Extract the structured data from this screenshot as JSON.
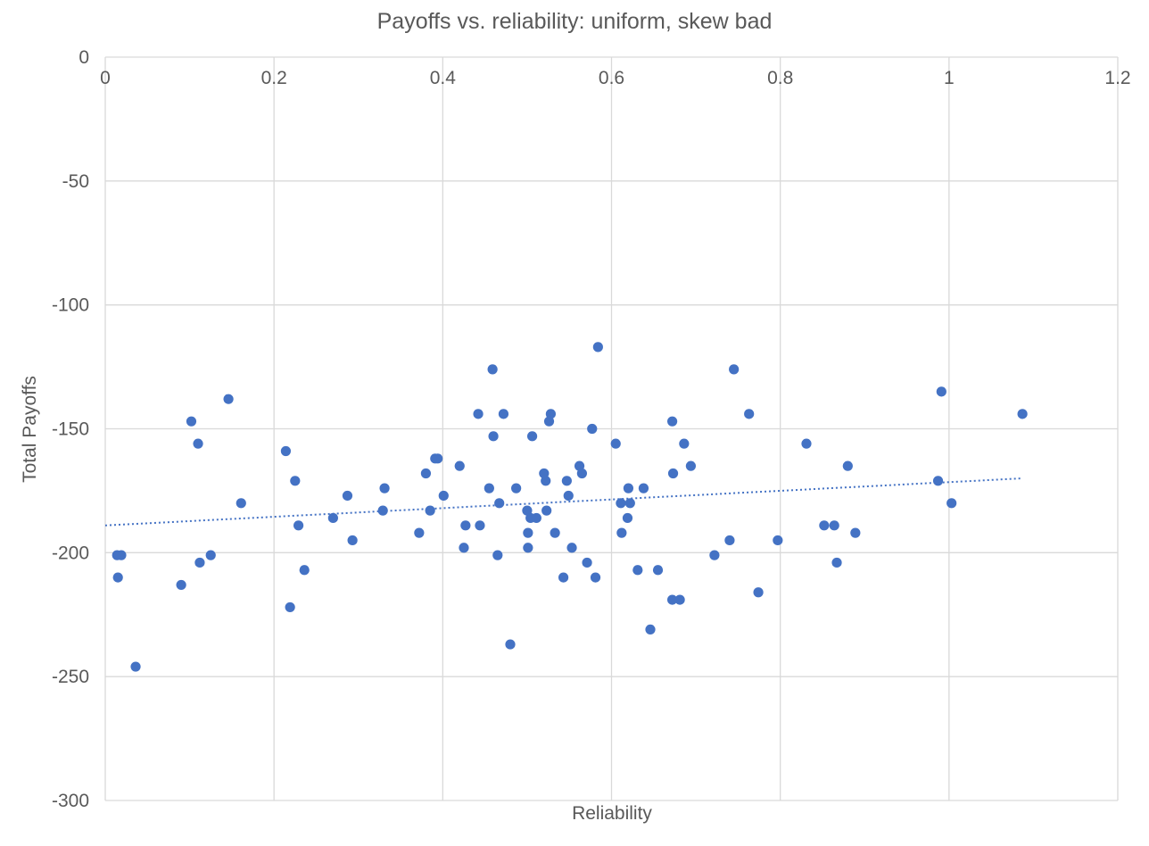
{
  "chart_data": {
    "type": "scatter",
    "title": "Payoffs vs. reliability: uniform, skew bad",
    "xlabel": "Reliability",
    "ylabel": "Total Payoffs",
    "xlim": [
      0,
      1.2
    ],
    "ylim": [
      -300,
      0
    ],
    "x_ticks": [
      0,
      0.2,
      0.4,
      0.6,
      0.8,
      1,
      1.2
    ],
    "x_tick_labels": [
      "0",
      "0.2",
      "0.4",
      "0.6",
      "0.8",
      "1",
      "1.2"
    ],
    "y_ticks": [
      0,
      -50,
      -100,
      -150,
      -200,
      -250,
      -300
    ],
    "y_tick_labels": [
      "0",
      "-50",
      "-100",
      "-150",
      "-200",
      "-250",
      "-300"
    ],
    "x_axis_position": "top",
    "grid": true,
    "legend": "none",
    "marker_color": "#4472c4",
    "trendline": {
      "type": "linear",
      "style": "dotted",
      "color": "#4472c4",
      "x_start": 0.0,
      "y_start": -189,
      "x_end": 1.087,
      "y_end": -170
    },
    "points": [
      [
        0.014,
        -201
      ],
      [
        0.019,
        -201
      ],
      [
        0.015,
        -210
      ],
      [
        0.036,
        -246
      ],
      [
        0.09,
        -213
      ],
      [
        0.102,
        -147
      ],
      [
        0.11,
        -156
      ],
      [
        0.112,
        -204
      ],
      [
        0.125,
        -201
      ],
      [
        0.146,
        -138
      ],
      [
        0.161,
        -180
      ],
      [
        0.214,
        -159
      ],
      [
        0.219,
        -222
      ],
      [
        0.225,
        -171
      ],
      [
        0.229,
        -189
      ],
      [
        0.236,
        -207
      ],
      [
        0.27,
        -186
      ],
      [
        0.287,
        -177
      ],
      [
        0.293,
        -195
      ],
      [
        0.329,
        -183
      ],
      [
        0.331,
        -174
      ],
      [
        0.372,
        -192
      ],
      [
        0.38,
        -168
      ],
      [
        0.385,
        -183
      ],
      [
        0.391,
        -162
      ],
      [
        0.394,
        -162
      ],
      [
        0.401,
        -177
      ],
      [
        0.42,
        -165
      ],
      [
        0.425,
        -198
      ],
      [
        0.427,
        -189
      ],
      [
        0.442,
        -144
      ],
      [
        0.444,
        -189
      ],
      [
        0.455,
        -174
      ],
      [
        0.459,
        -126
      ],
      [
        0.46,
        -153
      ],
      [
        0.465,
        -201
      ],
      [
        0.467,
        -180
      ],
      [
        0.472,
        -144
      ],
      [
        0.48,
        -237
      ],
      [
        0.487,
        -174
      ],
      [
        0.5,
        -183
      ],
      [
        0.501,
        -192
      ],
      [
        0.501,
        -198
      ],
      [
        0.504,
        -186
      ],
      [
        0.506,
        -153
      ],
      [
        0.511,
        -186
      ],
      [
        0.52,
        -168
      ],
      [
        0.522,
        -171
      ],
      [
        0.523,
        -183
      ],
      [
        0.526,
        -147
      ],
      [
        0.528,
        -144
      ],
      [
        0.533,
        -192
      ],
      [
        0.543,
        -210
      ],
      [
        0.547,
        -171
      ],
      [
        0.549,
        -177
      ],
      [
        0.553,
        -198
      ],
      [
        0.562,
        -165
      ],
      [
        0.565,
        -168
      ],
      [
        0.571,
        -204
      ],
      [
        0.577,
        -150
      ],
      [
        0.581,
        -210
      ],
      [
        0.584,
        -117
      ],
      [
        0.605,
        -156
      ],
      [
        0.611,
        -180
      ],
      [
        0.612,
        -192
      ],
      [
        0.619,
        -186
      ],
      [
        0.62,
        -174
      ],
      [
        0.622,
        -180
      ],
      [
        0.631,
        -207
      ],
      [
        0.638,
        -174
      ],
      [
        0.646,
        -231
      ],
      [
        0.655,
        -207
      ],
      [
        0.672,
        -219
      ],
      [
        0.672,
        -147
      ],
      [
        0.673,
        -168
      ],
      [
        0.681,
        -219
      ],
      [
        0.686,
        -156
      ],
      [
        0.694,
        -165
      ],
      [
        0.722,
        -201
      ],
      [
        0.74,
        -195
      ],
      [
        0.745,
        -126
      ],
      [
        0.763,
        -144
      ],
      [
        0.774,
        -216
      ],
      [
        0.797,
        -195
      ],
      [
        0.831,
        -156
      ],
      [
        0.852,
        -189
      ],
      [
        0.864,
        -189
      ],
      [
        0.867,
        -204
      ],
      [
        0.88,
        -165
      ],
      [
        0.889,
        -192
      ],
      [
        0.987,
        -171
      ],
      [
        0.991,
        -135
      ],
      [
        1.003,
        -180
      ],
      [
        1.087,
        -144
      ]
    ]
  }
}
